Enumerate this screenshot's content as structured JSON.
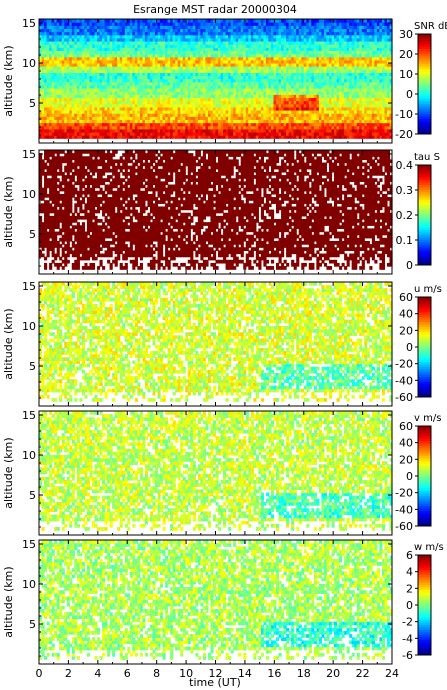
{
  "title": "Esrange MST radar 20000304",
  "x_axis": {
    "label": "time (UT)",
    "range": [
      0,
      24
    ],
    "ticks": [
      0,
      2,
      4,
      6,
      8,
      10,
      12,
      14,
      16,
      18,
      20,
      22,
      24
    ]
  },
  "chart_data": [
    {
      "type": "heatmap",
      "quantity": "SNR",
      "colorbar_label": "SNR dB",
      "colorbar_range": [
        -20,
        30
      ],
      "colorbar_ticks": [
        30,
        20,
        10,
        0,
        -10,
        -20
      ],
      "ylabel": "altitude (km)",
      "ylim": [
        0,
        15.5
      ],
      "yticks": [
        5,
        10,
        15
      ],
      "xlim": [
        0,
        24
      ],
      "colormap": "jet",
      "note_profile": {
        "altitude_km": [
          1,
          2,
          3,
          4,
          5,
          6,
          7,
          8,
          9,
          10,
          11,
          12,
          13,
          14,
          15
        ],
        "typical_value_db": [
          24,
          20,
          15,
          13,
          10,
          6,
          3,
          1,
          7,
          14,
          4,
          1,
          -4,
          -8,
          -10
        ]
      }
    },
    {
      "type": "heatmap",
      "quantity": "tau",
      "colorbar_label": "tau S",
      "colorbar_range": [
        0,
        0.4
      ],
      "colorbar_ticks": [
        0.4,
        0.3,
        0.2,
        0.1,
        0
      ],
      "ylabel": "altitude (km)",
      "ylim": [
        0,
        15.5
      ],
      "yticks": [
        5,
        10,
        15
      ],
      "xlim": [
        0,
        24
      ],
      "colormap": "jet",
      "dominant_value": 0.4,
      "dominant_color": "#800000"
    },
    {
      "type": "heatmap",
      "quantity": "u",
      "colorbar_label": "u m/s",
      "colorbar_range": [
        -60,
        60
      ],
      "colorbar_ticks": [
        60,
        40,
        20,
        0,
        -20,
        -40,
        -60
      ],
      "ylabel": "altitude (km)",
      "ylim": [
        0,
        15.5
      ],
      "yticks": [
        5,
        10,
        15
      ],
      "xlim": [
        0,
        24
      ],
      "colormap": "jet",
      "typical_value": 10
    },
    {
      "type": "heatmap",
      "quantity": "v",
      "colorbar_label": "v m/s",
      "colorbar_range": [
        -60,
        60
      ],
      "colorbar_ticks": [
        60,
        40,
        20,
        0,
        -20,
        -40,
        -60
      ],
      "ylabel": "altitude (km)",
      "ylim": [
        0,
        15.5
      ],
      "yticks": [
        5,
        10,
        15
      ],
      "xlim": [
        0,
        24
      ],
      "colormap": "jet",
      "typical_value": 8
    },
    {
      "type": "heatmap",
      "quantity": "w",
      "colorbar_label": "w m/s",
      "colorbar_range": [
        -6,
        6
      ],
      "colorbar_ticks": [
        6,
        4,
        2,
        0,
        -2,
        -4,
        -6
      ],
      "ylabel": "altitude (km)",
      "ylim": [
        0,
        15.5
      ],
      "yticks": [
        5,
        10,
        15
      ],
      "xlim": [
        0,
        24
      ],
      "colormap": "jet",
      "typical_value": 0.5
    }
  ]
}
